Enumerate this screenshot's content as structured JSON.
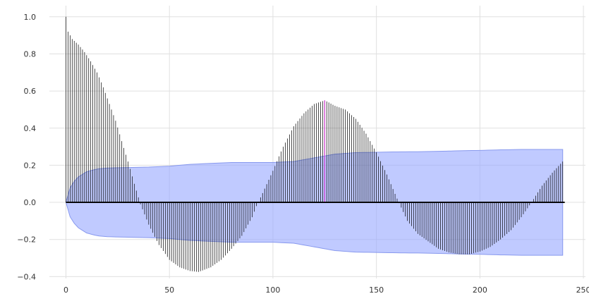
{
  "chart_data": {
    "type": "bar",
    "chart_kind": "autocorrelation stem plot with confidence band",
    "title": "",
    "xlabel": "",
    "ylabel": "",
    "xlim": [
      -8,
      251
    ],
    "ylim": [
      -0.41,
      1.06
    ],
    "x_ticks": [
      0,
      50,
      100,
      150,
      200,
      250
    ],
    "y_ticks": [
      -0.4,
      -0.2,
      0.0,
      0.2,
      0.4,
      0.6,
      0.8,
      1.0
    ],
    "grid": true,
    "legend": "none",
    "max_lag": 240,
    "highlight_lag": 125,
    "colors": {
      "stem": "#000000",
      "highlight_stem": "#cc33cc",
      "band_fill": "#99aaff",
      "band_edge": "#8899ee",
      "grid": "#e0e0e0",
      "zero_line": "#000000"
    },
    "acf_keypoints": [
      [
        0,
        1.0
      ],
      [
        1,
        0.92
      ],
      [
        3,
        0.88
      ],
      [
        6,
        0.85
      ],
      [
        9,
        0.81
      ],
      [
        12,
        0.76
      ],
      [
        15,
        0.7
      ],
      [
        18,
        0.62
      ],
      [
        21,
        0.53
      ],
      [
        24,
        0.44
      ],
      [
        27,
        0.33
      ],
      [
        30,
        0.22
      ],
      [
        33,
        0.1
      ],
      [
        36,
        -0.01
      ],
      [
        40,
        -0.12
      ],
      [
        45,
        -0.23
      ],
      [
        50,
        -0.31
      ],
      [
        55,
        -0.35
      ],
      [
        60,
        -0.37
      ],
      [
        64,
        -0.375
      ],
      [
        70,
        -0.35
      ],
      [
        75,
        -0.31
      ],
      [
        80,
        -0.25
      ],
      [
        85,
        -0.18
      ],
      [
        90,
        -0.08
      ],
      [
        92,
        -0.02
      ],
      [
        95,
        0.05
      ],
      [
        100,
        0.17
      ],
      [
        105,
        0.3
      ],
      [
        110,
        0.41
      ],
      [
        115,
        0.48
      ],
      [
        120,
        0.53
      ],
      [
        125,
        0.55
      ],
      [
        130,
        0.52
      ],
      [
        135,
        0.5
      ],
      [
        140,
        0.45
      ],
      [
        145,
        0.37
      ],
      [
        150,
        0.27
      ],
      [
        155,
        0.15
      ],
      [
        160,
        0.02
      ],
      [
        165,
        -0.1
      ],
      [
        170,
        -0.17
      ],
      [
        175,
        -0.21
      ],
      [
        180,
        -0.25
      ],
      [
        185,
        -0.27
      ],
      [
        190,
        -0.28
      ],
      [
        195,
        -0.28
      ],
      [
        200,
        -0.265
      ],
      [
        205,
        -0.24
      ],
      [
        210,
        -0.2
      ],
      [
        215,
        -0.15
      ],
      [
        220,
        -0.08
      ],
      [
        225,
        0.0
      ],
      [
        230,
        0.09
      ],
      [
        235,
        0.16
      ],
      [
        240,
        0.22
      ]
    ],
    "confidence_band": [
      [
        0,
        0.0
      ],
      [
        1,
        0.06
      ],
      [
        5,
        0.13
      ],
      [
        10,
        0.165
      ],
      [
        15,
        0.18
      ],
      [
        20,
        0.185
      ],
      [
        30,
        0.188
      ],
      [
        40,
        0.19
      ],
      [
        50,
        0.195
      ],
      [
        60,
        0.205
      ],
      [
        70,
        0.21
      ],
      [
        80,
        0.215
      ],
      [
        90,
        0.215
      ],
      [
        100,
        0.215
      ],
      [
        110,
        0.22
      ],
      [
        120,
        0.24
      ],
      [
        130,
        0.26
      ],
      [
        140,
        0.268
      ],
      [
        150,
        0.27
      ],
      [
        160,
        0.272
      ],
      [
        170,
        0.273
      ],
      [
        180,
        0.275
      ],
      [
        190,
        0.278
      ],
      [
        200,
        0.28
      ],
      [
        210,
        0.283
      ],
      [
        220,
        0.285
      ],
      [
        230,
        0.285
      ],
      [
        240,
        0.285
      ]
    ]
  }
}
